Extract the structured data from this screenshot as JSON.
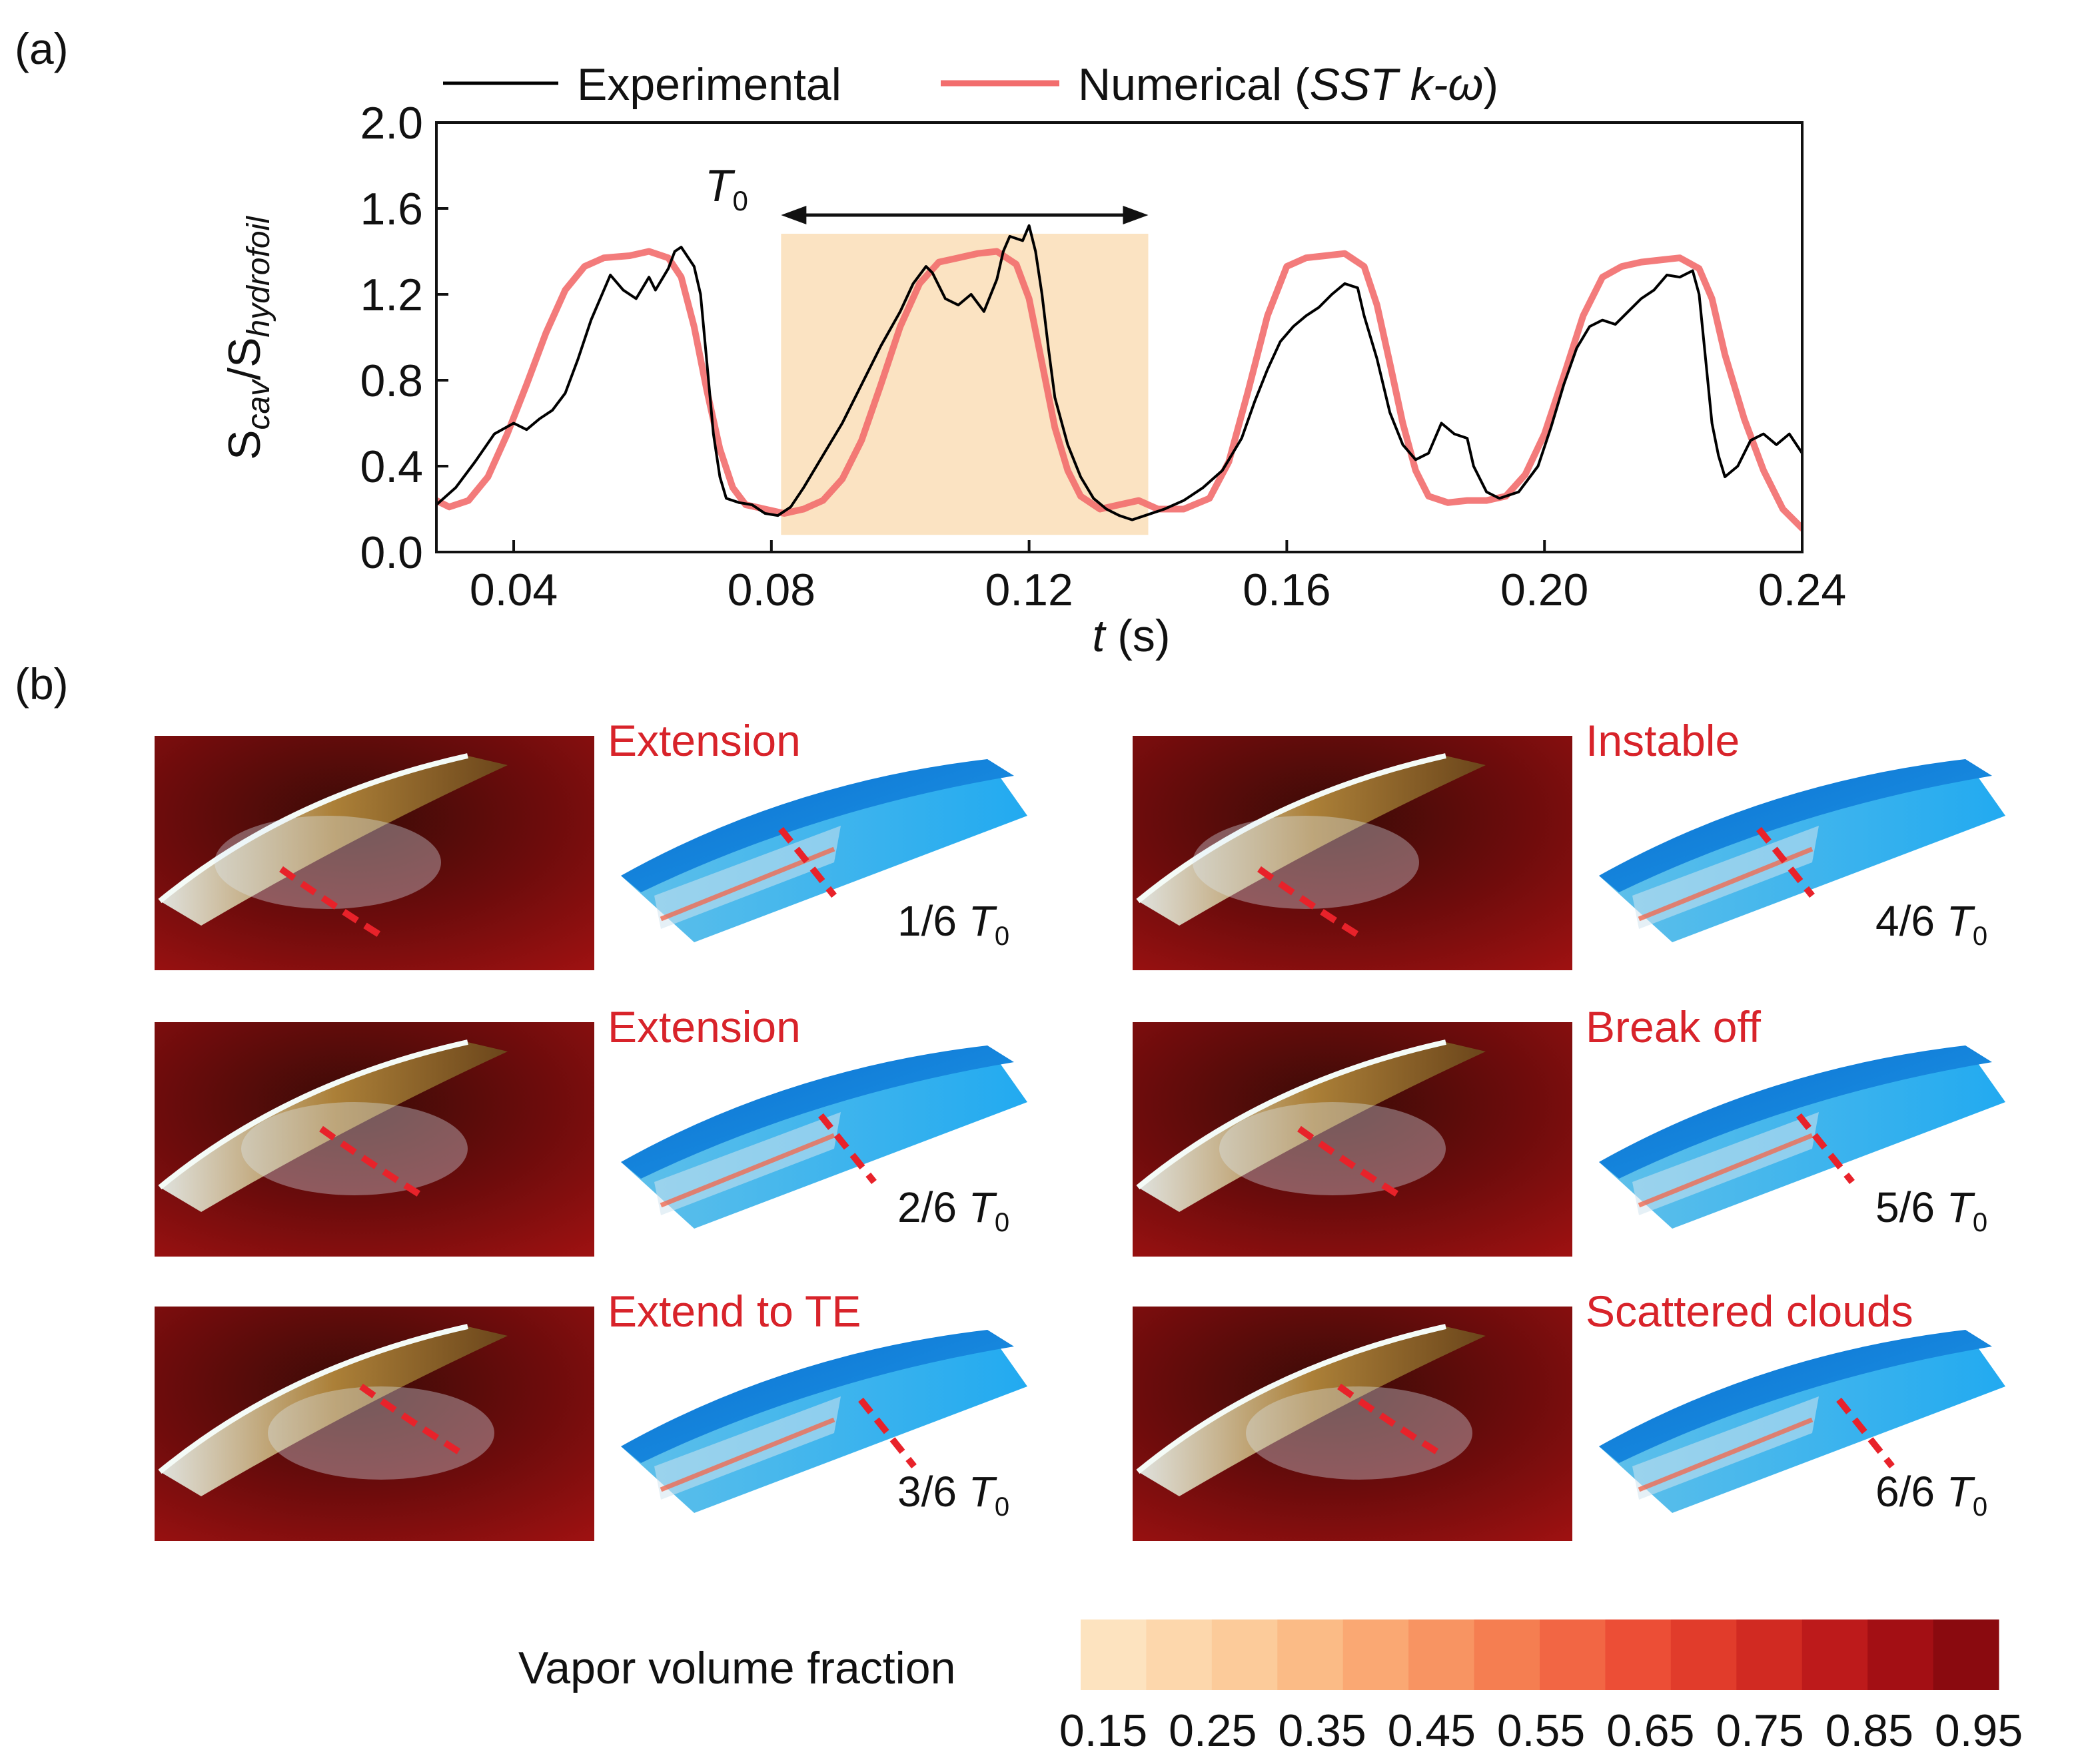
{
  "panel_labels": {
    "a": "(a)",
    "b": "(b)"
  },
  "colors": {
    "experimental": "#000000",
    "numerical": "#f26d6d",
    "period_band": "#fbe3c2",
    "stage_title": "#d8232a",
    "red_marker": "#e8222a",
    "hydrofoil_blue": "#1d97e6",
    "photo_background": "#8c0d0d"
  },
  "chart_data": {
    "type": "line",
    "xlabel": {
      "italic": "t",
      "rest": " (s)"
    },
    "ylabel": {
      "main1": "S",
      "sub1": "cav",
      "slash": "/",
      "main2": "S",
      "sub2": "hydrofoil"
    },
    "xlim": [
      0.028,
      0.24
    ],
    "ylim": [
      0.0,
      2.0
    ],
    "xticks": [
      0.04,
      0.08,
      0.12,
      0.16,
      0.2,
      0.24
    ],
    "xtick_labels": [
      "0.04",
      "0.08",
      "0.12",
      "0.16",
      "0.20",
      "0.24"
    ],
    "yticks": [
      0.0,
      0.4,
      0.8,
      1.2,
      1.6,
      2.0
    ],
    "ytick_labels": [
      "0.0",
      "0.4",
      "0.8",
      "1.2",
      "1.6",
      "2.0"
    ],
    "legend": {
      "position": "top",
      "entries": [
        {
          "name": "Experimental"
        },
        {
          "name_plain": "Numerical (",
          "name_italic": "SST k-ω",
          "name_close": ")"
        }
      ]
    },
    "period_annotation": {
      "label": "T",
      "sub": "0",
      "x_start": 0.0815,
      "x_end": 0.1385,
      "y_top": 1.6,
      "y_bottom": 0.08
    },
    "series": [
      {
        "name": "Experimental",
        "points": [
          [
            0.028,
            0.22
          ],
          [
            0.031,
            0.3
          ],
          [
            0.034,
            0.42
          ],
          [
            0.037,
            0.55
          ],
          [
            0.04,
            0.6
          ],
          [
            0.042,
            0.57
          ],
          [
            0.044,
            0.62
          ],
          [
            0.046,
            0.66
          ],
          [
            0.048,
            0.74
          ],
          [
            0.05,
            0.9
          ],
          [
            0.052,
            1.08
          ],
          [
            0.054,
            1.22
          ],
          [
            0.055,
            1.29
          ],
          [
            0.057,
            1.22
          ],
          [
            0.059,
            1.18
          ],
          [
            0.061,
            1.28
          ],
          [
            0.062,
            1.22
          ],
          [
            0.064,
            1.32
          ],
          [
            0.065,
            1.4
          ],
          [
            0.066,
            1.42
          ],
          [
            0.068,
            1.33
          ],
          [
            0.069,
            1.2
          ],
          [
            0.07,
            0.88
          ],
          [
            0.071,
            0.55
          ],
          [
            0.072,
            0.35
          ],
          [
            0.073,
            0.25
          ],
          [
            0.075,
            0.23
          ],
          [
            0.077,
            0.22
          ],
          [
            0.079,
            0.18
          ],
          [
            0.081,
            0.17
          ],
          [
            0.083,
            0.21
          ],
          [
            0.085,
            0.3
          ],
          [
            0.088,
            0.45
          ],
          [
            0.091,
            0.6
          ],
          [
            0.094,
            0.78
          ],
          [
            0.097,
            0.96
          ],
          [
            0.1,
            1.12
          ],
          [
            0.102,
            1.25
          ],
          [
            0.104,
            1.33
          ],
          [
            0.105,
            1.3
          ],
          [
            0.107,
            1.18
          ],
          [
            0.109,
            1.15
          ],
          [
            0.111,
            1.2
          ],
          [
            0.113,
            1.12
          ],
          [
            0.115,
            1.27
          ],
          [
            0.116,
            1.4
          ],
          [
            0.117,
            1.47
          ],
          [
            0.119,
            1.45
          ],
          [
            0.12,
            1.52
          ],
          [
            0.121,
            1.4
          ],
          [
            0.122,
            1.2
          ],
          [
            0.123,
            0.95
          ],
          [
            0.124,
            0.72
          ],
          [
            0.126,
            0.5
          ],
          [
            0.128,
            0.35
          ],
          [
            0.13,
            0.25
          ],
          [
            0.132,
            0.2
          ],
          [
            0.134,
            0.17
          ],
          [
            0.136,
            0.15
          ],
          [
            0.138,
            0.17
          ],
          [
            0.141,
            0.2
          ],
          [
            0.144,
            0.24
          ],
          [
            0.147,
            0.3
          ],
          [
            0.15,
            0.38
          ],
          [
            0.153,
            0.53
          ],
          [
            0.155,
            0.7
          ],
          [
            0.157,
            0.85
          ],
          [
            0.159,
            0.98
          ],
          [
            0.161,
            1.05
          ],
          [
            0.163,
            1.1
          ],
          [
            0.165,
            1.14
          ],
          [
            0.167,
            1.2
          ],
          [
            0.169,
            1.25
          ],
          [
            0.171,
            1.23
          ],
          [
            0.172,
            1.1
          ],
          [
            0.174,
            0.9
          ],
          [
            0.176,
            0.65
          ],
          [
            0.178,
            0.5
          ],
          [
            0.18,
            0.43
          ],
          [
            0.182,
            0.46
          ],
          [
            0.184,
            0.6
          ],
          [
            0.186,
            0.55
          ],
          [
            0.188,
            0.53
          ],
          [
            0.189,
            0.4
          ],
          [
            0.191,
            0.28
          ],
          [
            0.193,
            0.25
          ],
          [
            0.196,
            0.28
          ],
          [
            0.199,
            0.4
          ],
          [
            0.201,
            0.58
          ],
          [
            0.203,
            0.78
          ],
          [
            0.205,
            0.95
          ],
          [
            0.207,
            1.05
          ],
          [
            0.209,
            1.08
          ],
          [
            0.211,
            1.06
          ],
          [
            0.213,
            1.12
          ],
          [
            0.215,
            1.18
          ],
          [
            0.217,
            1.22
          ],
          [
            0.219,
            1.29
          ],
          [
            0.221,
            1.28
          ],
          [
            0.223,
            1.31
          ],
          [
            0.224,
            1.2
          ],
          [
            0.225,
            0.9
          ],
          [
            0.226,
            0.6
          ],
          [
            0.227,
            0.45
          ],
          [
            0.228,
            0.35
          ],
          [
            0.23,
            0.4
          ],
          [
            0.232,
            0.52
          ],
          [
            0.234,
            0.55
          ],
          [
            0.236,
            0.5
          ],
          [
            0.238,
            0.55
          ],
          [
            0.24,
            0.46
          ]
        ]
      },
      {
        "name": "Numerical (SST k-ω)",
        "points": [
          [
            0.028,
            0.24
          ],
          [
            0.03,
            0.21
          ],
          [
            0.033,
            0.24
          ],
          [
            0.036,
            0.35
          ],
          [
            0.039,
            0.55
          ],
          [
            0.042,
            0.78
          ],
          [
            0.045,
            1.02
          ],
          [
            0.048,
            1.22
          ],
          [
            0.051,
            1.33
          ],
          [
            0.054,
            1.37
          ],
          [
            0.058,
            1.38
          ],
          [
            0.061,
            1.4
          ],
          [
            0.064,
            1.37
          ],
          [
            0.066,
            1.28
          ],
          [
            0.068,
            1.05
          ],
          [
            0.07,
            0.75
          ],
          [
            0.072,
            0.48
          ],
          [
            0.074,
            0.3
          ],
          [
            0.076,
            0.22
          ],
          [
            0.079,
            0.2
          ],
          [
            0.082,
            0.18
          ],
          [
            0.085,
            0.2
          ],
          [
            0.088,
            0.24
          ],
          [
            0.091,
            0.34
          ],
          [
            0.094,
            0.52
          ],
          [
            0.097,
            0.78
          ],
          [
            0.1,
            1.05
          ],
          [
            0.103,
            1.25
          ],
          [
            0.106,
            1.35
          ],
          [
            0.109,
            1.37
          ],
          [
            0.112,
            1.39
          ],
          [
            0.115,
            1.4
          ],
          [
            0.118,
            1.34
          ],
          [
            0.12,
            1.18
          ],
          [
            0.122,
            0.88
          ],
          [
            0.124,
            0.58
          ],
          [
            0.126,
            0.38
          ],
          [
            0.128,
            0.26
          ],
          [
            0.131,
            0.2
          ],
          [
            0.134,
            0.22
          ],
          [
            0.137,
            0.24
          ],
          [
            0.14,
            0.2
          ],
          [
            0.144,
            0.2
          ],
          [
            0.148,
            0.25
          ],
          [
            0.151,
            0.42
          ],
          [
            0.154,
            0.75
          ],
          [
            0.157,
            1.1
          ],
          [
            0.16,
            1.33
          ],
          [
            0.163,
            1.37
          ],
          [
            0.166,
            1.38
          ],
          [
            0.169,
            1.39
          ],
          [
            0.172,
            1.33
          ],
          [
            0.174,
            1.15
          ],
          [
            0.176,
            0.88
          ],
          [
            0.178,
            0.6
          ],
          [
            0.18,
            0.38
          ],
          [
            0.182,
            0.26
          ],
          [
            0.185,
            0.23
          ],
          [
            0.188,
            0.24
          ],
          [
            0.191,
            0.24
          ],
          [
            0.194,
            0.26
          ],
          [
            0.197,
            0.36
          ],
          [
            0.2,
            0.55
          ],
          [
            0.203,
            0.82
          ],
          [
            0.206,
            1.1
          ],
          [
            0.209,
            1.28
          ],
          [
            0.212,
            1.33
          ],
          [
            0.215,
            1.35
          ],
          [
            0.218,
            1.36
          ],
          [
            0.221,
            1.37
          ],
          [
            0.224,
            1.32
          ],
          [
            0.226,
            1.18
          ],
          [
            0.228,
            0.92
          ],
          [
            0.231,
            0.62
          ],
          [
            0.234,
            0.38
          ],
          [
            0.237,
            0.2
          ],
          [
            0.24,
            0.11
          ]
        ]
      }
    ]
  },
  "panel_b": {
    "stages": [
      {
        "title": "Extension",
        "phase": "1/6"
      },
      {
        "title": "Extension",
        "phase": "2/6"
      },
      {
        "title": "Extend to TE",
        "phase": "3/6"
      },
      {
        "title": "Instable",
        "phase": "4/6"
      },
      {
        "title": "Break off",
        "phase": "5/6"
      },
      {
        "title": "Scattered clouds",
        "phase": "6/6"
      }
    ],
    "period_symbol": "T",
    "period_sub": "0"
  },
  "colorbar": {
    "label": "Vapor volume fraction",
    "ticks": [
      "0.15",
      "0.25",
      "0.35",
      "0.45",
      "0.55",
      "0.65",
      "0.75",
      "0.85",
      "0.95"
    ],
    "levels": [
      "#fde3bf",
      "#fdd7ac",
      "#fccb9a",
      "#fbbb86",
      "#faa873",
      "#f89462",
      "#f57e51",
      "#f26644",
      "#ec4e36",
      "#e13c2b",
      "#d12a22",
      "#bd1a1b",
      "#a30f14",
      "#8a0a0f"
    ]
  }
}
